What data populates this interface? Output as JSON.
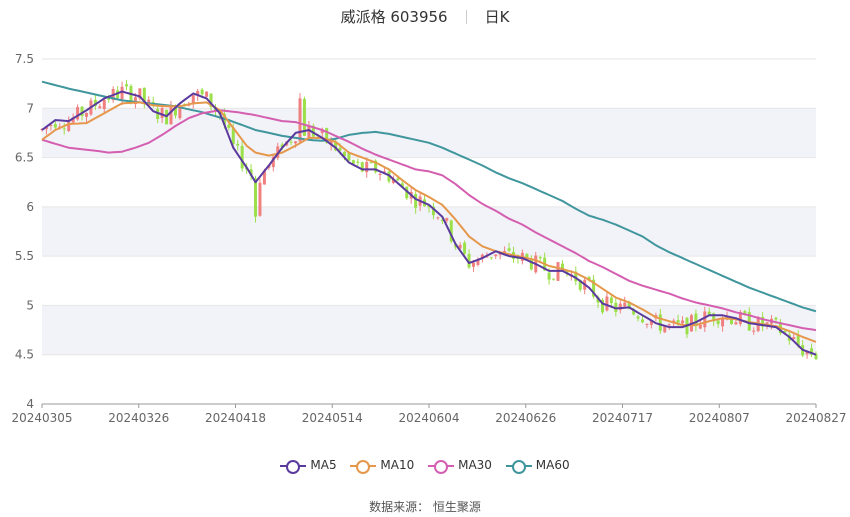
{
  "title": {
    "name": "威派格 603956",
    "period": "日K"
  },
  "source": "数据来源： 恒生聚源",
  "colors": {
    "up": "#f08080",
    "down": "#9be04a",
    "band": "#f2f3f8",
    "MA5": "#5b3a9e",
    "MA10": "#e5984c",
    "MA30": "#d45fb1",
    "MA60": "#3f969d"
  },
  "chart_data": {
    "type": "candlestick",
    "xlabels": [
      "20240305",
      "20240326",
      "20240418",
      "20240514",
      "20240604",
      "20240626",
      "20240717",
      "20240807",
      "20240827"
    ],
    "yticks": [
      "7.5",
      "7",
      "6.5",
      "6",
      "5.5",
      "5",
      "4.5",
      "4"
    ],
    "ylim": [
      4,
      7.5
    ],
    "legend": [
      "MA5",
      "MA10",
      "MA30",
      "MA60"
    ],
    "ma_points": {
      "MA5": [
        [
          0,
          6.78
        ],
        [
          3,
          6.88
        ],
        [
          6,
          6.87
        ],
        [
          10,
          6.98
        ],
        [
          14,
          7.1
        ],
        [
          18,
          7.17
        ],
        [
          22,
          7.12
        ],
        [
          25,
          6.97
        ],
        [
          28,
          6.92
        ],
        [
          31,
          7.05
        ],
        [
          34,
          7.15
        ],
        [
          37,
          7.1
        ],
        [
          40,
          6.95
        ],
        [
          43,
          6.6
        ],
        [
          46,
          6.4
        ],
        [
          48,
          6.25
        ],
        [
          51,
          6.42
        ],
        [
          54,
          6.6
        ],
        [
          57,
          6.75
        ],
        [
          60,
          6.78
        ],
        [
          63,
          6.7
        ],
        [
          66,
          6.6
        ],
        [
          69,
          6.45
        ],
        [
          72,
          6.38
        ],
        [
          75,
          6.38
        ],
        [
          78,
          6.32
        ],
        [
          81,
          6.2
        ],
        [
          84,
          6.08
        ],
        [
          87,
          6.02
        ],
        [
          90,
          5.9
        ],
        [
          93,
          5.62
        ],
        [
          96,
          5.43
        ],
        [
          99,
          5.48
        ],
        [
          102,
          5.55
        ],
        [
          105,
          5.5
        ],
        [
          108,
          5.48
        ],
        [
          111,
          5.42
        ],
        [
          114,
          5.35
        ],
        [
          117,
          5.35
        ],
        [
          120,
          5.28
        ],
        [
          123,
          5.18
        ],
        [
          126,
          5.02
        ],
        [
          129,
          4.97
        ],
        [
          132,
          4.98
        ],
        [
          135,
          4.9
        ],
        [
          138,
          4.82
        ],
        [
          141,
          4.78
        ],
        [
          144,
          4.78
        ],
        [
          147,
          4.83
        ],
        [
          150,
          4.9
        ],
        [
          153,
          4.9
        ],
        [
          156,
          4.87
        ],
        [
          159,
          4.82
        ],
        [
          162,
          4.8
        ],
        [
          165,
          4.78
        ],
        [
          168,
          4.68
        ],
        [
          171,
          4.55
        ],
        [
          174,
          4.5
        ]
      ],
      "MA10": [
        [
          0,
          6.68
        ],
        [
          3,
          6.78
        ],
        [
          6,
          6.84
        ],
        [
          10,
          6.85
        ],
        [
          14,
          6.95
        ],
        [
          18,
          7.05
        ],
        [
          22,
          7.06
        ],
        [
          25,
          7.03
        ],
        [
          28,
          7.02
        ],
        [
          31,
          7.02
        ],
        [
          34,
          7.05
        ],
        [
          37,
          7.06
        ],
        [
          40,
          6.98
        ],
        [
          43,
          6.8
        ],
        [
          46,
          6.62
        ],
        [
          48,
          6.55
        ],
        [
          51,
          6.52
        ],
        [
          54,
          6.55
        ],
        [
          57,
          6.62
        ],
        [
          60,
          6.7
        ],
        [
          63,
          6.7
        ],
        [
          66,
          6.66
        ],
        [
          69,
          6.55
        ],
        [
          72,
          6.5
        ],
        [
          75,
          6.45
        ],
        [
          78,
          6.38
        ],
        [
          81,
          6.27
        ],
        [
          84,
          6.17
        ],
        [
          87,
          6.1
        ],
        [
          90,
          6.02
        ],
        [
          93,
          5.87
        ],
        [
          96,
          5.7
        ],
        [
          99,
          5.6
        ],
        [
          102,
          5.55
        ],
        [
          105,
          5.52
        ],
        [
          108,
          5.49
        ],
        [
          111,
          5.46
        ],
        [
          114,
          5.4
        ],
        [
          117,
          5.37
        ],
        [
          120,
          5.33
        ],
        [
          123,
          5.26
        ],
        [
          126,
          5.17
        ],
        [
          129,
          5.08
        ],
        [
          132,
          5.03
        ],
        [
          135,
          4.96
        ],
        [
          138,
          4.88
        ],
        [
          141,
          4.84
        ],
        [
          144,
          4.8
        ],
        [
          147,
          4.8
        ],
        [
          150,
          4.84
        ],
        [
          153,
          4.87
        ],
        [
          156,
          4.86
        ],
        [
          159,
          4.83
        ],
        [
          162,
          4.81
        ],
        [
          165,
          4.79
        ],
        [
          168,
          4.74
        ],
        [
          171,
          4.68
        ],
        [
          174,
          4.63
        ]
      ],
      "MA30": [
        [
          0,
          6.68
        ],
        [
          6,
          6.6
        ],
        [
          12,
          6.57
        ],
        [
          15,
          6.55
        ],
        [
          18,
          6.56
        ],
        [
          21,
          6.6
        ],
        [
          24,
          6.65
        ],
        [
          27,
          6.73
        ],
        [
          30,
          6.82
        ],
        [
          33,
          6.9
        ],
        [
          36,
          6.95
        ],
        [
          40,
          6.98
        ],
        [
          44,
          6.96
        ],
        [
          48,
          6.93
        ],
        [
          51,
          6.9
        ],
        [
          54,
          6.87
        ],
        [
          57,
          6.86
        ],
        [
          60,
          6.82
        ],
        [
          63,
          6.78
        ],
        [
          66,
          6.72
        ],
        [
          69,
          6.66
        ],
        [
          72,
          6.59
        ],
        [
          75,
          6.53
        ],
        [
          78,
          6.48
        ],
        [
          81,
          6.43
        ],
        [
          84,
          6.38
        ],
        [
          87,
          6.36
        ],
        [
          90,
          6.32
        ],
        [
          93,
          6.23
        ],
        [
          96,
          6.12
        ],
        [
          99,
          6.03
        ],
        [
          102,
          5.96
        ],
        [
          105,
          5.88
        ],
        [
          108,
          5.82
        ],
        [
          111,
          5.74
        ],
        [
          114,
          5.67
        ],
        [
          117,
          5.6
        ],
        [
          120,
          5.53
        ],
        [
          123,
          5.45
        ],
        [
          126,
          5.39
        ],
        [
          129,
          5.32
        ],
        [
          132,
          5.25
        ],
        [
          135,
          5.2
        ],
        [
          138,
          5.16
        ],
        [
          141,
          5.12
        ],
        [
          144,
          5.07
        ],
        [
          147,
          5.03
        ],
        [
          150,
          5.0
        ],
        [
          153,
          4.97
        ],
        [
          156,
          4.93
        ],
        [
          159,
          4.9
        ],
        [
          162,
          4.86
        ],
        [
          165,
          4.83
        ],
        [
          168,
          4.8
        ],
        [
          171,
          4.77
        ],
        [
          174,
          4.75
        ]
      ],
      "MA60": [
        [
          0,
          7.27
        ],
        [
          6,
          7.2
        ],
        [
          12,
          7.14
        ],
        [
          18,
          7.08
        ],
        [
          24,
          7.05
        ],
        [
          30,
          7.02
        ],
        [
          36,
          6.96
        ],
        [
          42,
          6.88
        ],
        [
          48,
          6.78
        ],
        [
          54,
          6.72
        ],
        [
          60,
          6.68
        ],
        [
          63,
          6.67
        ],
        [
          66,
          6.69
        ],
        [
          69,
          6.73
        ],
        [
          72,
          6.75
        ],
        [
          75,
          6.76
        ],
        [
          78,
          6.74
        ],
        [
          81,
          6.71
        ],
        [
          84,
          6.68
        ],
        [
          87,
          6.65
        ],
        [
          90,
          6.6
        ],
        [
          93,
          6.54
        ],
        [
          96,
          6.48
        ],
        [
          99,
          6.42
        ],
        [
          102,
          6.35
        ],
        [
          105,
          6.29
        ],
        [
          108,
          6.24
        ],
        [
          111,
          6.18
        ],
        [
          114,
          6.12
        ],
        [
          117,
          6.06
        ],
        [
          120,
          5.98
        ],
        [
          123,
          5.91
        ],
        [
          126,
          5.87
        ],
        [
          129,
          5.82
        ],
        [
          132,
          5.76
        ],
        [
          135,
          5.7
        ],
        [
          138,
          5.61
        ],
        [
          141,
          5.54
        ],
        [
          144,
          5.48
        ],
        [
          147,
          5.42
        ],
        [
          150,
          5.36
        ],
        [
          153,
          5.3
        ],
        [
          156,
          5.24
        ],
        [
          159,
          5.18
        ],
        [
          162,
          5.13
        ],
        [
          165,
          5.08
        ],
        [
          168,
          5.03
        ],
        [
          171,
          4.98
        ],
        [
          174,
          4.94
        ]
      ]
    }
  }
}
